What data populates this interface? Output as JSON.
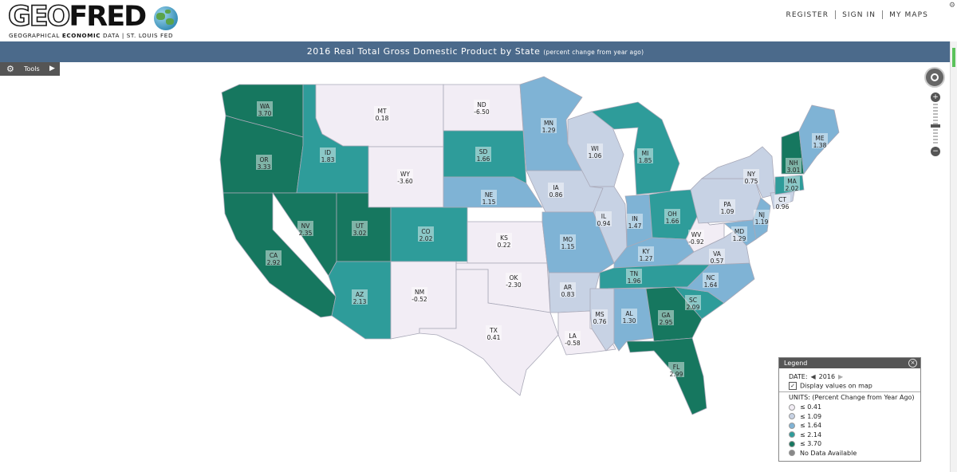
{
  "header": {
    "logo_geo": "GEO",
    "logo_fred": "FRED",
    "logo_sub_1": "GEOGRAPHICAL ",
    "logo_sub_bold": "ECONOMIC",
    "logo_sub_2": " DATA  |  ST. LOUIS FED",
    "nav": [
      "REGISTER",
      "SIGN IN",
      "MY MAPS"
    ]
  },
  "title": {
    "main": "2016 Real Total Gross Domestic Product by State",
    "sub": "(percent change from year ago)"
  },
  "tools": {
    "label": "Tools"
  },
  "legend": {
    "title": "Legend",
    "date_label": "DATE:",
    "date_value": "2016",
    "display_values_label": "Display values on map",
    "display_values_checked": true,
    "units_label": "UNITS:",
    "units_value": "(Percent Change from Year Ago)",
    "classes": [
      {
        "label": "≤ 0.41",
        "color": "#f2edf5"
      },
      {
        "label": "≤ 1.09",
        "color": "#c7d2e4"
      },
      {
        "label": "≤ 1.64",
        "color": "#7fb3d5"
      },
      {
        "label": "≤ 2.14",
        "color": "#2e9c9a"
      },
      {
        "label": "≤ 3.70",
        "color": "#16775f"
      },
      {
        "label": "No Data Available",
        "color": "#888888"
      }
    ]
  },
  "map_data": {
    "states": [
      {
        "abbr": "WA",
        "value": "3.70",
        "class": 4
      },
      {
        "abbr": "OR",
        "value": "3.33",
        "class": 4
      },
      {
        "abbr": "CA",
        "value": "2.92",
        "class": 4
      },
      {
        "abbr": "ID",
        "value": "1.83",
        "class": 3
      },
      {
        "abbr": "NV",
        "value": "2.35",
        "class": 4
      },
      {
        "abbr": "MT",
        "value": "0.18",
        "class": 0
      },
      {
        "abbr": "WY",
        "value": "-3.60",
        "class": 0
      },
      {
        "abbr": "UT",
        "value": "3.02",
        "class": 4
      },
      {
        "abbr": "CO",
        "value": "2.02",
        "class": 3
      },
      {
        "abbr": "AZ",
        "value": "2.13",
        "class": 3
      },
      {
        "abbr": "NM",
        "value": "-0.52",
        "class": 0
      },
      {
        "abbr": "ND",
        "value": "-6.50",
        "class": 0
      },
      {
        "abbr": "SD",
        "value": "1.66",
        "class": 3
      },
      {
        "abbr": "NE",
        "value": "1.15",
        "class": 2
      },
      {
        "abbr": "KS",
        "value": "0.22",
        "class": 0
      },
      {
        "abbr": "OK",
        "value": "-2.30",
        "class": 0
      },
      {
        "abbr": "TX",
        "value": "0.41",
        "class": 0
      },
      {
        "abbr": "MN",
        "value": "1.29",
        "class": 2
      },
      {
        "abbr": "IA",
        "value": "0.86",
        "class": 1
      },
      {
        "abbr": "MO",
        "value": "1.15",
        "class": 2
      },
      {
        "abbr": "AR",
        "value": "0.83",
        "class": 1
      },
      {
        "abbr": "LA",
        "value": "-0.58",
        "class": 0
      },
      {
        "abbr": "WI",
        "value": "1.06",
        "class": 1
      },
      {
        "abbr": "IL",
        "value": "0.94",
        "class": 1
      },
      {
        "abbr": "MI",
        "value": "1.85",
        "class": 3
      },
      {
        "abbr": "IN",
        "value": "1.47",
        "class": 2
      },
      {
        "abbr": "OH",
        "value": "1.66",
        "class": 3
      },
      {
        "abbr": "KY",
        "value": "1.27",
        "class": 2
      },
      {
        "abbr": "TN",
        "value": "1.96",
        "class": 3
      },
      {
        "abbr": "MS",
        "value": "0.76",
        "class": 1
      },
      {
        "abbr": "AL",
        "value": "1.30",
        "class": 2
      },
      {
        "abbr": "GA",
        "value": "2.95",
        "class": 4
      },
      {
        "abbr": "FL",
        "value": "2.99",
        "class": 4
      },
      {
        "abbr": "SC",
        "value": "2.09",
        "class": 3
      },
      {
        "abbr": "NC",
        "value": "1.64",
        "class": 2
      },
      {
        "abbr": "VA",
        "value": "0.57",
        "class": 1
      },
      {
        "abbr": "WV",
        "value": "-0.92",
        "class": 0
      },
      {
        "abbr": "PA",
        "value": "1.09",
        "class": 1
      },
      {
        "abbr": "NY",
        "value": "0.75",
        "class": 1
      },
      {
        "abbr": "MD",
        "value": "1.29",
        "class": 2
      },
      {
        "abbr": "NJ",
        "value": "1.19",
        "class": 2
      },
      {
        "abbr": "CT",
        "value": "0.96",
        "class": 1
      },
      {
        "abbr": "MA",
        "value": "2.02",
        "class": 3
      },
      {
        "abbr": "NH",
        "value": "3.01",
        "class": 4
      },
      {
        "abbr": "ME",
        "value": "1.38",
        "class": 2
      }
    ]
  }
}
